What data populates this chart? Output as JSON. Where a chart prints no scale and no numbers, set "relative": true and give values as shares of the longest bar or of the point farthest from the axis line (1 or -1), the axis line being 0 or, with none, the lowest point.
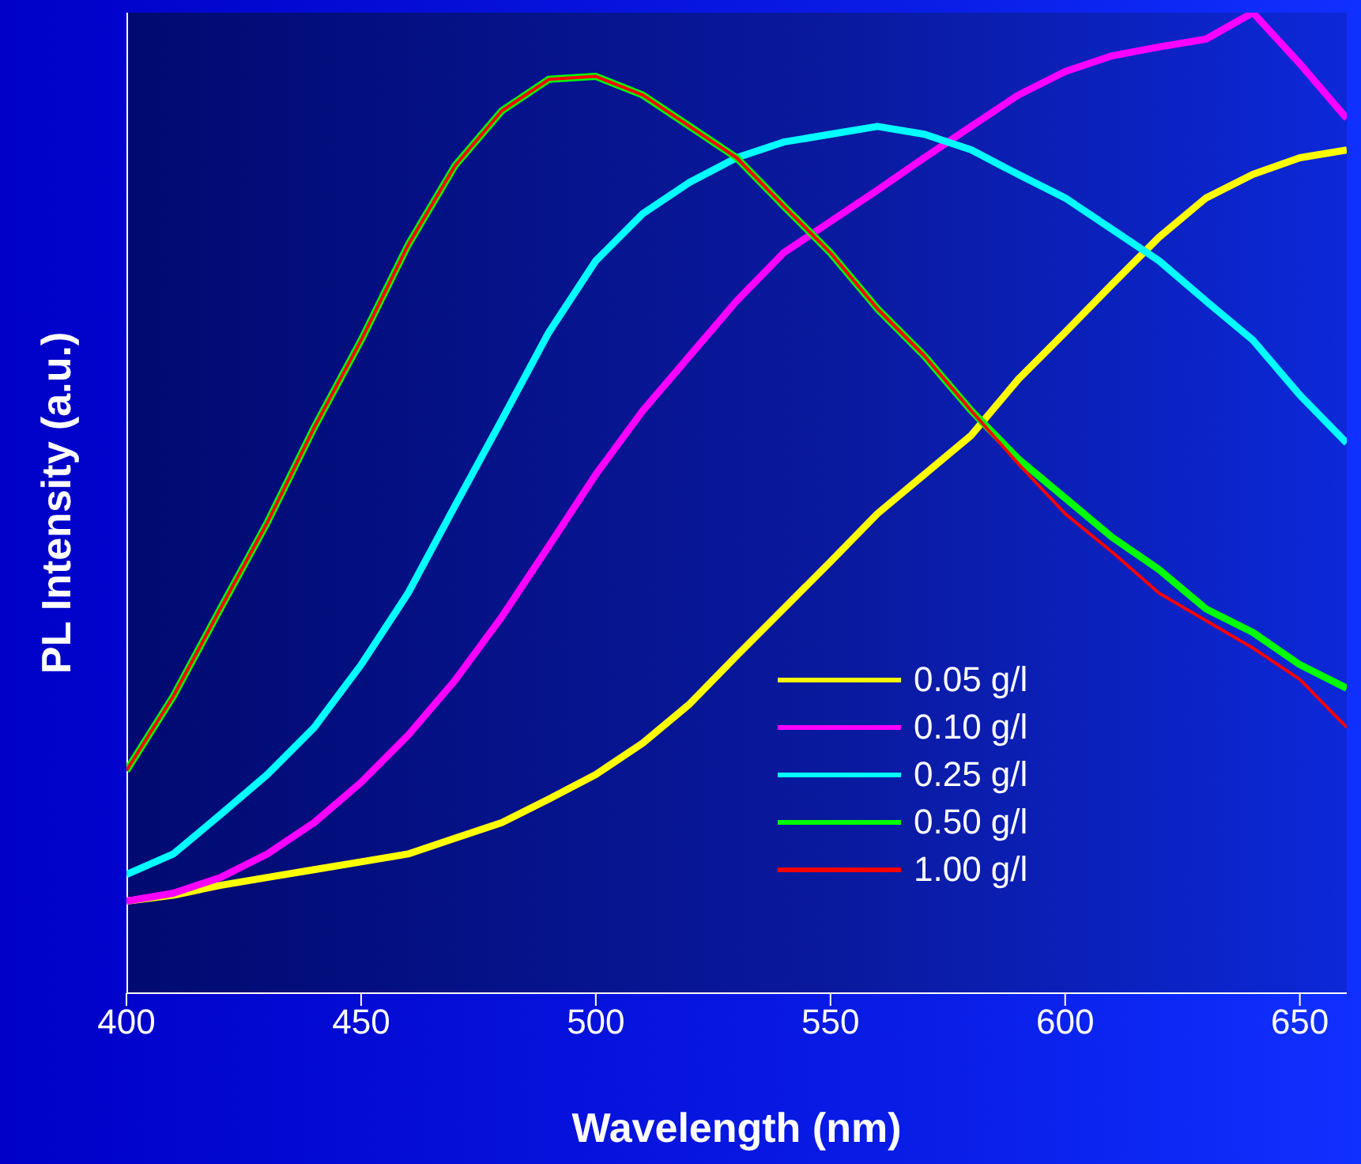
{
  "chart_data": {
    "type": "line",
    "xlabel": "Wavelength (nm)",
    "ylabel": "PL Intensity (a.u.)",
    "relative": true,
    "xlim": [
      400,
      660
    ],
    "xticks": [
      400,
      450,
      500,
      550,
      600,
      650
    ],
    "tick_labels": "x",
    "legend": "bottom right",
    "marker": "none",
    "line_style": "solid",
    "x": [
      400,
      410,
      420,
      430,
      440,
      450,
      460,
      470,
      480,
      490,
      500,
      510,
      520,
      530,
      540,
      550,
      560,
      570,
      580,
      590,
      600,
      610,
      620,
      630,
      640,
      650,
      660
    ],
    "series": [
      {
        "name": "0.05 g/l",
        "color": "#ffff00",
        "values": [
          0.094,
          0.1,
          0.11,
          0.118,
          0.126,
          0.134,
          0.142,
          0.158,
          0.174,
          0.198,
          0.223,
          0.255,
          0.295,
          0.344,
          0.392,
          0.44,
          0.489,
          0.529,
          0.569,
          0.626,
          0.674,
          0.723,
          0.771,
          0.811,
          0.835,
          0.852,
          0.86
        ]
      },
      {
        "name": "0.10 g/l",
        "color": "#ff00ff",
        "values": [
          0.094,
          0.102,
          0.118,
          0.142,
          0.174,
          0.215,
          0.263,
          0.319,
          0.384,
          0.456,
          0.529,
          0.594,
          0.65,
          0.706,
          0.755,
          0.787,
          0.819,
          0.852,
          0.884,
          0.916,
          0.94,
          0.956,
          0.965,
          0.973,
          1,
          0.948,
          0.892
        ]
      },
      {
        "name": "0.25 g/l",
        "color": "#00ffff",
        "values": [
          0.121,
          0.142,
          0.182,
          0.223,
          0.271,
          0.335,
          0.408,
          0.497,
          0.585,
          0.674,
          0.747,
          0.795,
          0.827,
          0.852,
          0.868,
          0.876,
          0.884,
          0.876,
          0.86,
          0.835,
          0.811,
          0.779,
          0.747,
          0.706,
          0.666,
          0.61,
          0.561
        ]
      },
      {
        "name": "0.50 g/l",
        "color": "#00ff00",
        "values": [
          0.227,
          0.303,
          0.392,
          0.48,
          0.577,
          0.666,
          0.763,
          0.844,
          0.9,
          0.932,
          0.935,
          0.916,
          0.884,
          0.852,
          0.803,
          0.755,
          0.698,
          0.65,
          0.594,
          0.545,
          0.505,
          0.465,
          0.432,
          0.392,
          0.368,
          0.335,
          0.311
        ]
      },
      {
        "name": "1.00 g/l",
        "color": "#ff0000",
        "values": [
          0.227,
          0.303,
          0.392,
          0.48,
          0.577,
          0.666,
          0.763,
          0.844,
          0.9,
          0.932,
          0.935,
          0.916,
          0.884,
          0.852,
          0.803,
          0.755,
          0.698,
          0.65,
          0.594,
          0.54,
          0.489,
          0.45,
          0.408,
          0.38,
          0.352,
          0.32,
          0.271
        ]
      }
    ]
  }
}
